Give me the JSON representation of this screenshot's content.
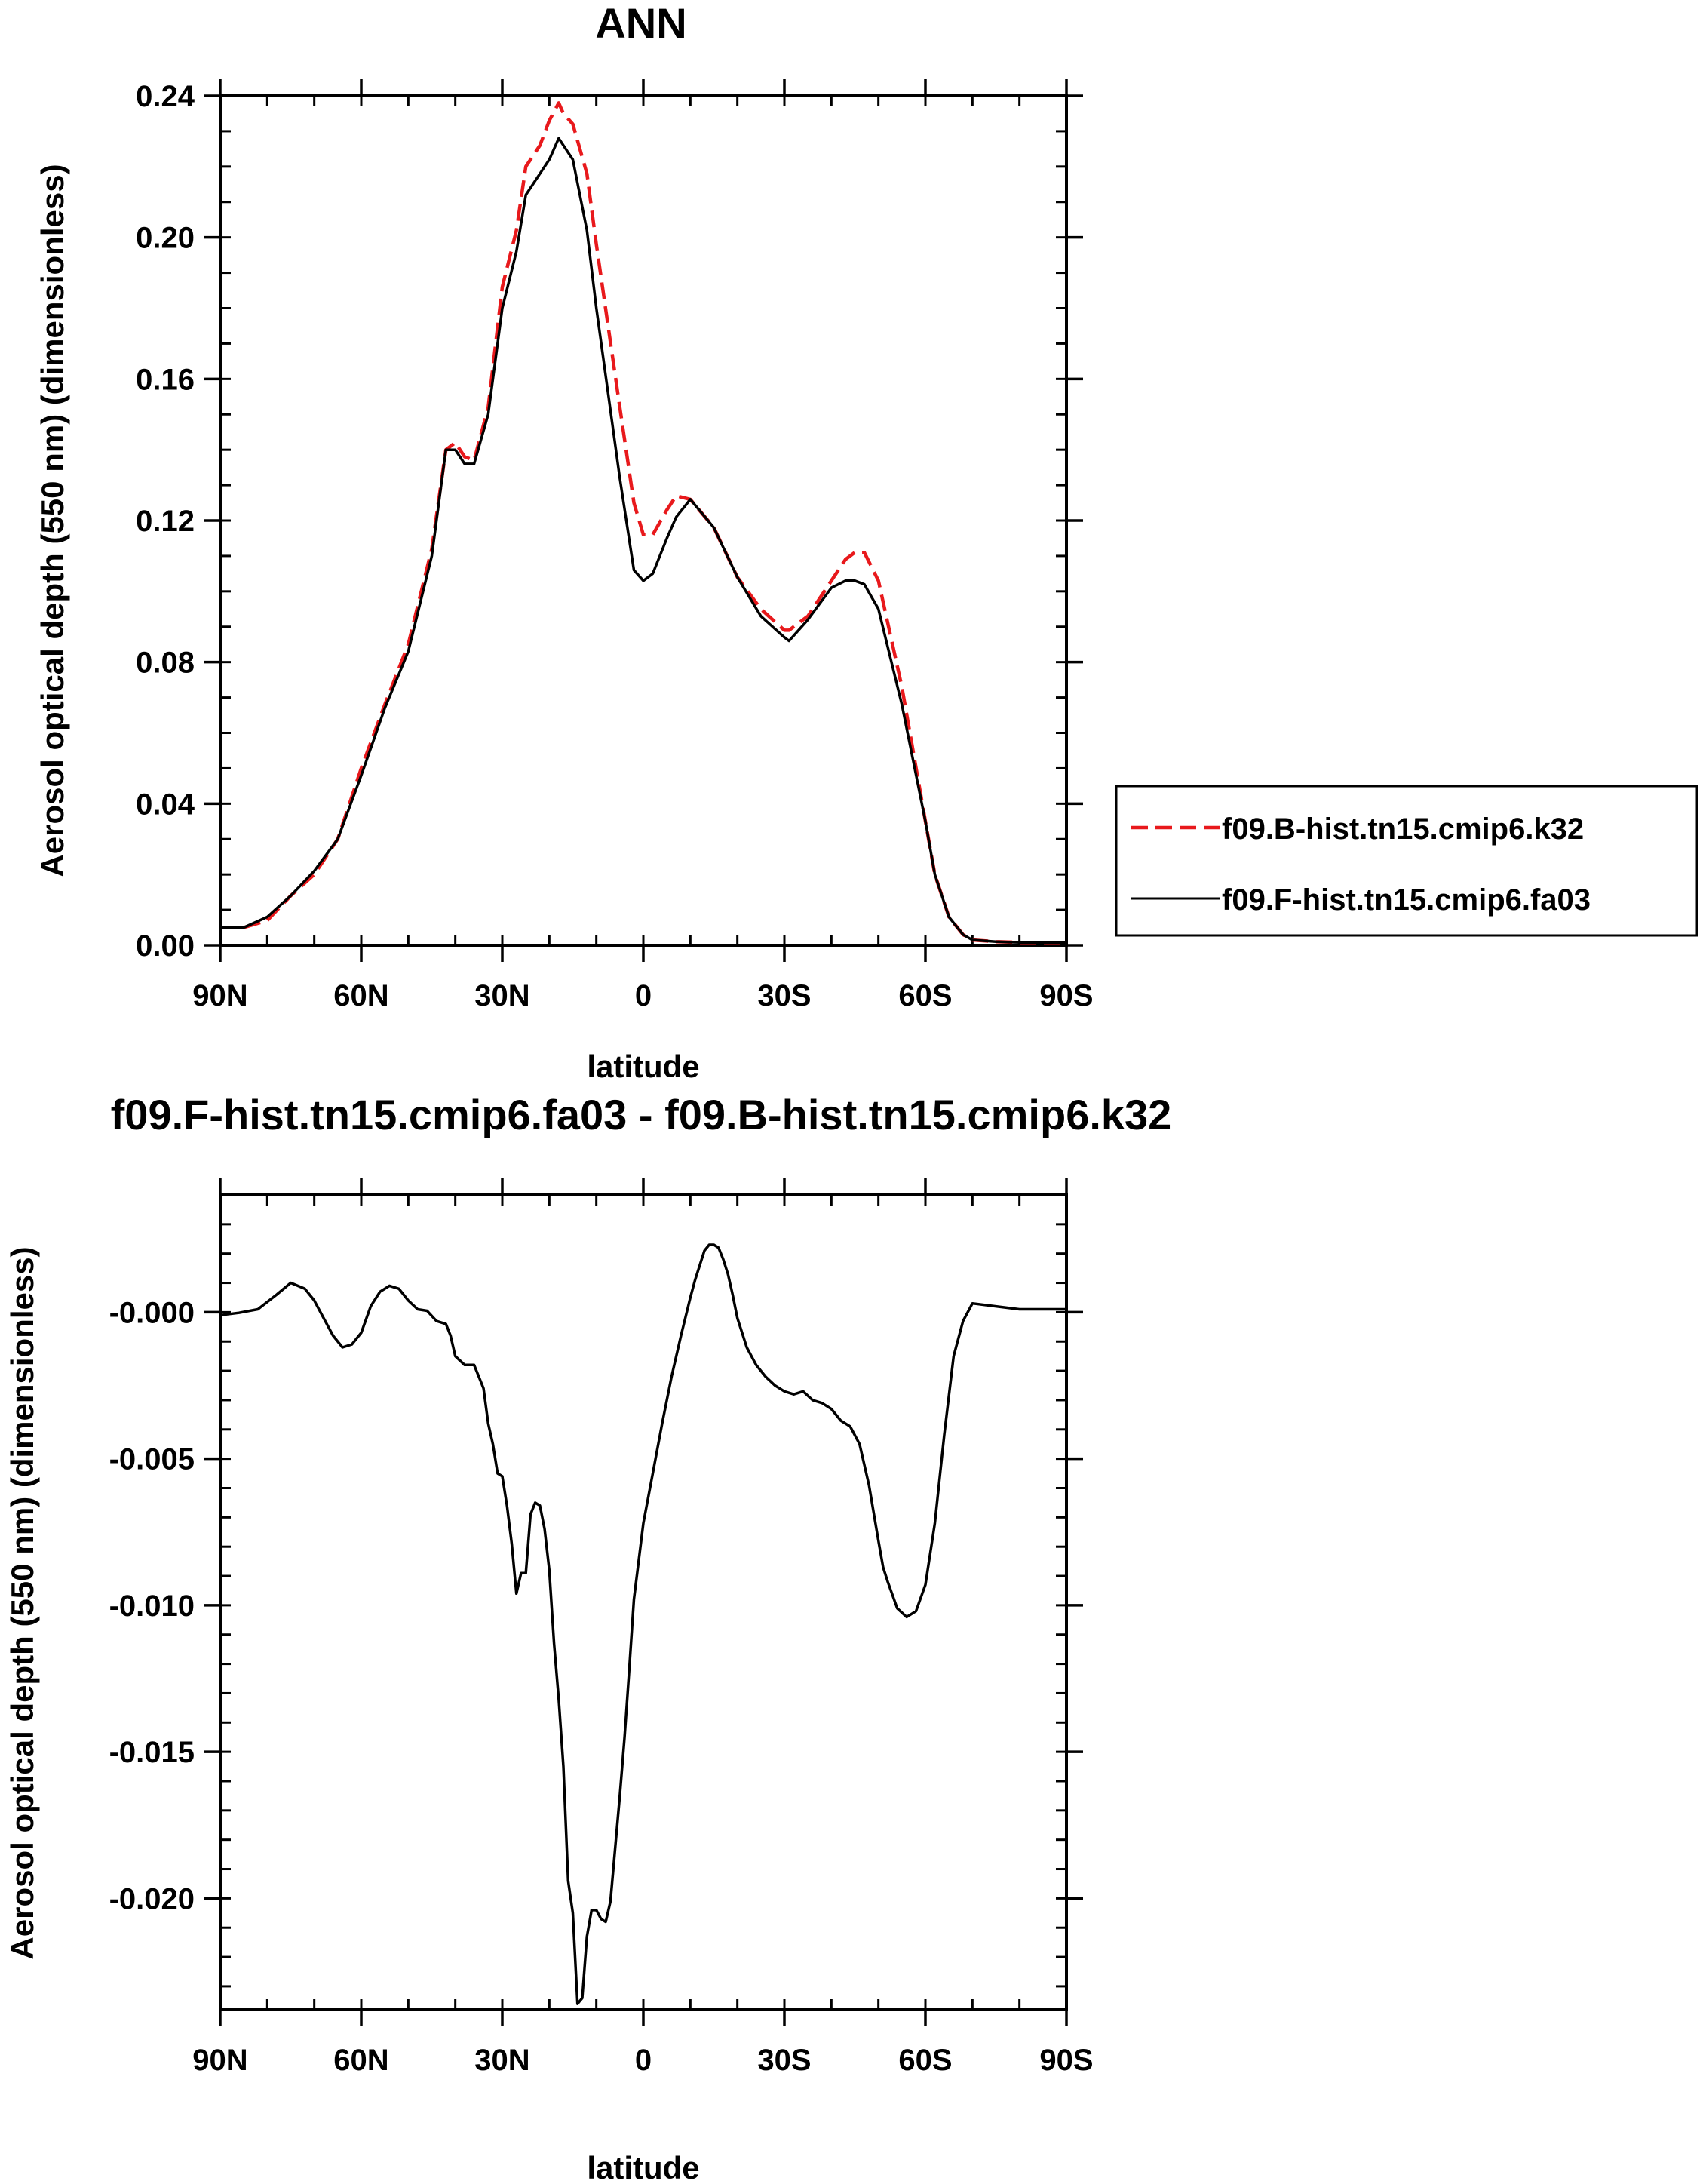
{
  "chart_data": [
    {
      "type": "line",
      "title": "ANN",
      "xlabel": "latitude",
      "ylabel": "Aerosol optical depth (550 nm) (dimensionless)",
      "xticks": [
        90,
        60,
        30,
        0,
        -30,
        -60,
        -90
      ],
      "xtick_labels": [
        "90N",
        "60N",
        "30N",
        "0",
        "30S",
        "60S",
        "90S"
      ],
      "xlim": [
        90,
        -90
      ],
      "ylim": [
        0,
        0.24
      ],
      "yticks": [
        0,
        0.04,
        0.08,
        0.12,
        0.16,
        0.2,
        0.24
      ],
      "ytick_labels": [
        "0.00",
        "0.04",
        "0.08",
        "0.12",
        "0.16",
        "0.20",
        "0.24"
      ],
      "legend_position": "right",
      "series": [
        {
          "name": "f09.B-hist.tn15.cmip6.k32",
          "color": "#e8191c",
          "dash": "dashed",
          "x": [
            90,
            85,
            80,
            75,
            70,
            65,
            60,
            55,
            50,
            45,
            42,
            40,
            38,
            36,
            33,
            30,
            27,
            25,
            22,
            20,
            18,
            17,
            15,
            12,
            10,
            5,
            2,
            0,
            -2,
            -5,
            -7,
            -10,
            -15,
            -20,
            -25,
            -30,
            -31,
            -35,
            -40,
            -43,
            -45,
            -47,
            -50,
            -55,
            -60,
            -62,
            -65,
            -68,
            -70,
            -75,
            -80,
            -85,
            -90
          ],
          "y": [
            0.005,
            0.005,
            0.007,
            0.014,
            0.02,
            0.03,
            0.05,
            0.068,
            0.085,
            0.112,
            0.14,
            0.142,
            0.138,
            0.137,
            0.152,
            0.186,
            0.202,
            0.22,
            0.226,
            0.233,
            0.238,
            0.235,
            0.232,
            0.218,
            0.198,
            0.152,
            0.125,
            0.116,
            0.116,
            0.123,
            0.127,
            0.126,
            0.118,
            0.104,
            0.095,
            0.089,
            0.089,
            0.093,
            0.103,
            0.109,
            0.111,
            0.111,
            0.103,
            0.073,
            0.035,
            0.02,
            0.008,
            0.003,
            0.0015,
            0.001,
            0.0008,
            0.0008,
            0.0008
          ]
        },
        {
          "name": "f09.F-hist.tn15.cmip6.fa03",
          "color": "#000000",
          "dash": "solid",
          "x": [
            90,
            85,
            80,
            75,
            70,
            65,
            60,
            55,
            50,
            45,
            42,
            40,
            38,
            36,
            33,
            30,
            27,
            25,
            22,
            20,
            18,
            17,
            15,
            12,
            10,
            5,
            2,
            0,
            -2,
            -5,
            -7,
            -10,
            -15,
            -20,
            -25,
            -30,
            -31,
            -35,
            -40,
            -43,
            -45,
            -47,
            -50,
            -55,
            -60,
            -62,
            -65,
            -68,
            -70,
            -75,
            -80,
            -85,
            -90
          ],
          "y": [
            0.005,
            0.005,
            0.008,
            0.014,
            0.021,
            0.03,
            0.048,
            0.067,
            0.083,
            0.11,
            0.14,
            0.14,
            0.136,
            0.136,
            0.15,
            0.18,
            0.196,
            0.212,
            0.218,
            0.222,
            0.228,
            0.226,
            0.222,
            0.202,
            0.18,
            0.132,
            0.106,
            0.103,
            0.105,
            0.115,
            0.121,
            0.126,
            0.118,
            0.104,
            0.093,
            0.087,
            0.086,
            0.092,
            0.101,
            0.103,
            0.103,
            0.102,
            0.095,
            0.068,
            0.035,
            0.02,
            0.008,
            0.003,
            0.0015,
            0.001,
            0.0008,
            0.0008,
            0.0008
          ]
        }
      ]
    },
    {
      "type": "line",
      "title": "f09.F-hist.tn15.cmip6.fa03 - f09.B-hist.tn15.cmip6.k32",
      "xlabel": "latitude",
      "ylabel": "Aerosol optical depth (550 nm) (dimensionless)",
      "xticks": [
        90,
        60,
        30,
        0,
        -30,
        -60,
        -90
      ],
      "xtick_labels": [
        "90N",
        "60N",
        "30N",
        "0",
        "30S",
        "60S",
        "90S"
      ],
      "xlim": [
        90,
        -90
      ],
      "ylim": [
        -0.0238,
        0.004
      ],
      "yticks": [
        0,
        -0.005,
        -0.01,
        -0.015,
        -0.02
      ],
      "ytick_labels": [
        "-0.000",
        "-0.005",
        "-0.010",
        "-0.015",
        "-0.020"
      ],
      "series": [
        {
          "name": "",
          "color": "#000000",
          "dash": "solid",
          "x": [
            90,
            86,
            82,
            78,
            75,
            72,
            70,
            68,
            66,
            64,
            62,
            60,
            58,
            56,
            54,
            52,
            50,
            48,
            46,
            44,
            42,
            41,
            40,
            38,
            37,
            36,
            34,
            33,
            32,
            31,
            30,
            29,
            28,
            27,
            26,
            25,
            24,
            23,
            22,
            21,
            20,
            19,
            18,
            17,
            16,
            15,
            14,
            13,
            12,
            11,
            10,
            9,
            8,
            7,
            6,
            5,
            4,
            3,
            2,
            0,
            -2,
            -4,
            -6,
            -8,
            -10,
            -11,
            -12,
            -13,
            -14,
            -15,
            -16,
            -17,
            -18,
            -19,
            -20,
            -22,
            -24,
            -26,
            -28,
            -30,
            -32,
            -34,
            -36,
            -38,
            -40,
            -42,
            -44,
            -46,
            -48,
            -50,
            -51,
            -52,
            -54,
            -56,
            -58,
            -60,
            -62,
            -64,
            -66,
            -68,
            -70,
            -75,
            -80,
            -85,
            -90
          ],
          "y": [
            -0.0001,
            -2e-05,
            0.0001,
            0.0006,
            0.001,
            0.0008,
            0.0004,
            -0.0002,
            -0.0008,
            -0.0012,
            -0.0011,
            -0.0007,
            0.0002,
            0.0007,
            0.0009,
            0.0008,
            0.0004,
            0.0001,
            5e-05,
            -0.0003,
            -0.0004,
            -0.0008,
            -0.0015,
            -0.0018,
            -0.0018,
            -0.0018,
            -0.0026,
            -0.0038,
            -0.0045,
            -0.0055,
            -0.0056,
            -0.0066,
            -0.0079,
            -0.0096,
            -0.0089,
            -0.0089,
            -0.0069,
            -0.0065,
            -0.0066,
            -0.0074,
            -0.0088,
            -0.0113,
            -0.0132,
            -0.0155,
            -0.0194,
            -0.0205,
            -0.0236,
            -0.0234,
            -0.0213,
            -0.0204,
            -0.0204,
            -0.0207,
            -0.0208,
            -0.0201,
            -0.0183,
            -0.0165,
            -0.0145,
            -0.0122,
            -0.0098,
            -0.0072,
            -0.0055,
            -0.0038,
            -0.0022,
            -0.0008,
            0.0005,
            0.0011,
            0.0016,
            0.0021,
            0.0023,
            0.0023,
            0.0022,
            0.0018,
            0.0013,
            0.0006,
            -0.0002,
            -0.0012,
            -0.0018,
            -0.0022,
            -0.0025,
            -0.0027,
            -0.0028,
            -0.0027,
            -0.003,
            -0.0031,
            -0.0033,
            -0.0037,
            -0.0039,
            -0.0045,
            -0.0059,
            -0.0078,
            -0.0087,
            -0.0092,
            -0.0101,
            -0.0104,
            -0.0102,
            -0.0093,
            -0.0072,
            -0.0042,
            -0.0015,
            -0.0003,
            0.0003,
            0.0002,
            0.0001,
            0.0001,
            0.0001
          ]
        }
      ]
    }
  ]
}
